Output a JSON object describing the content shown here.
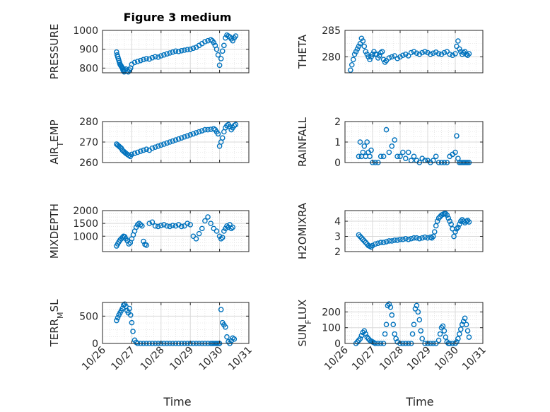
{
  "figure": {
    "title": "Figure 3 medium",
    "xlabel": "Time",
    "marker_color": "#0072BD",
    "axis_color": "#262626",
    "grid_color": "#d9d9d9",
    "x_tick_labels": [
      "10/26",
      "10/27",
      "10/28",
      "10/29",
      "10/30",
      "10/31"
    ]
  },
  "chart_data": [
    {
      "type": "scatter",
      "id": "pressure",
      "title": "Figure 3 medium",
      "ylabel": "PRESSURE",
      "xlim": [
        0,
        5
      ],
      "ylim": [
        775,
        1000
      ],
      "yticks": [
        800,
        900,
        1000
      ],
      "grid": true,
      "xlabel": "",
      "series": [
        {
          "x": [
            0.48,
            0.5,
            0.52,
            0.54,
            0.56,
            0.58,
            0.6,
            0.62,
            0.64,
            0.66,
            0.68,
            0.7,
            0.72,
            0.74,
            0.76,
            0.8,
            0.84,
            0.88,
            0.92,
            0.96,
            1.0,
            1.1,
            1.2,
            1.3,
            1.4,
            1.5,
            1.6,
            1.7,
            1.8,
            1.9,
            2.0,
            2.1,
            2.2,
            2.3,
            2.4,
            2.5,
            2.6,
            2.7,
            2.8,
            2.9,
            3.0,
            3.1,
            3.2,
            3.3,
            3.4,
            3.5,
            3.6,
            3.7,
            3.75,
            3.8,
            3.85,
            3.9,
            3.95,
            4.0,
            4.05,
            4.1,
            4.15,
            4.2,
            4.25,
            4.3,
            4.35,
            4.4,
            4.45,
            4.5,
            4.55
          ],
          "y": [
            885,
            870,
            860,
            850,
            840,
            830,
            820,
            815,
            810,
            805,
            800,
            790,
            785,
            780,
            790,
            795,
            785,
            780,
            790,
            800,
            820,
            830,
            835,
            840,
            845,
            850,
            848,
            855,
            860,
            858,
            865,
            870,
            875,
            880,
            885,
            890,
            888,
            892,
            895,
            898,
            900,
            905,
            910,
            920,
            930,
            940,
            945,
            950,
            945,
            935,
            920,
            900,
            870,
            815,
            850,
            890,
            920,
            960,
            975,
            970,
            965,
            955,
            945,
            960,
            970
          ]
        }
      ]
    },
    {
      "type": "scatter",
      "id": "theta",
      "ylabel": "THETA",
      "xlim": [
        0,
        5
      ],
      "ylim": [
        277,
        285
      ],
      "yticks": [
        280,
        285
      ],
      "grid": true,
      "xlabel": "",
      "title": "",
      "series": [
        {
          "x": [
            0.2,
            0.25,
            0.3,
            0.35,
            0.4,
            0.45,
            0.5,
            0.55,
            0.6,
            0.65,
            0.7,
            0.75,
            0.8,
            0.85,
            0.9,
            0.95,
            1.0,
            1.05,
            1.1,
            1.15,
            1.2,
            1.25,
            1.3,
            1.35,
            1.4,
            1.45,
            1.5,
            1.6,
            1.7,
            1.8,
            1.9,
            2.0,
            2.1,
            2.2,
            2.3,
            2.4,
            2.5,
            2.6,
            2.7,
            2.8,
            2.9,
            3.0,
            3.1,
            3.2,
            3.3,
            3.4,
            3.5,
            3.6,
            3.7,
            3.8,
            3.9,
            4.0,
            4.05,
            4.1,
            4.15,
            4.2,
            4.25,
            4.3,
            4.35,
            4.4,
            4.45,
            4.5
          ],
          "y": [
            277.5,
            278.5,
            279.5,
            280.5,
            281,
            281.5,
            282,
            282.5,
            283.5,
            283,
            282,
            281,
            280.5,
            280,
            279.5,
            280,
            280.5,
            281,
            280.5,
            280.5,
            279.8,
            280.2,
            280.8,
            281,
            279.5,
            279,
            279.3,
            279.8,
            280,
            280.2,
            279.7,
            280,
            280.3,
            280.5,
            280.2,
            280.8,
            281,
            280.7,
            280.5,
            280.8,
            281,
            280.8,
            280.5,
            280.7,
            280.9,
            280.6,
            280.5,
            280.8,
            281,
            280.5,
            280.3,
            280.6,
            282,
            283,
            281.5,
            281,
            280.5,
            280.8,
            281,
            280.5,
            280.3,
            280.6
          ]
        }
      ]
    },
    {
      "type": "scatter",
      "id": "air_temp",
      "ylabel": "AIR_TEMP",
      "xlim": [
        0,
        5
      ],
      "ylim": [
        260,
        280
      ],
      "yticks": [
        260,
        270,
        280
      ],
      "grid": true,
      "xlabel": "",
      "title": "",
      "series": [
        {
          "x": [
            0.48,
            0.52,
            0.56,
            0.6,
            0.64,
            0.68,
            0.72,
            0.76,
            0.8,
            0.85,
            0.9,
            0.95,
            1.0,
            1.1,
            1.2,
            1.3,
            1.4,
            1.5,
            1.6,
            1.7,
            1.8,
            1.9,
            2.0,
            2.1,
            2.2,
            2.3,
            2.4,
            2.5,
            2.6,
            2.7,
            2.8,
            2.9,
            3.0,
            3.1,
            3.2,
            3.3,
            3.4,
            3.5,
            3.6,
            3.7,
            3.8,
            3.85,
            3.9,
            3.95,
            4.0,
            4.05,
            4.1,
            4.15,
            4.2,
            4.25,
            4.3,
            4.35,
            4.4,
            4.45,
            4.5,
            4.55
          ],
          "y": [
            269,
            268.5,
            268,
            267.5,
            267,
            266,
            265.5,
            265,
            264.5,
            264,
            263.5,
            263,
            264,
            264.5,
            265,
            265.5,
            266,
            266.5,
            266,
            267,
            267.5,
            268,
            268.5,
            269,
            269.5,
            270,
            270.5,
            271,
            271.5,
            272,
            272.5,
            273,
            273.5,
            274,
            274.5,
            275,
            275.5,
            276,
            276,
            276.2,
            276.5,
            276,
            275,
            274,
            268,
            270,
            272,
            275,
            277,
            278,
            278.5,
            277.5,
            276,
            277,
            278,
            278.5
          ]
        }
      ]
    },
    {
      "type": "scatter",
      "id": "rainfall",
      "ylabel": "RAINFALL",
      "xlim": [
        0,
        5
      ],
      "ylim": [
        0,
        2
      ],
      "yticks": [
        0,
        1,
        2
      ],
      "grid": true,
      "xlabel": "",
      "title": "",
      "series": [
        {
          "x": [
            0.5,
            0.55,
            0.6,
            0.65,
            0.7,
            0.75,
            0.8,
            0.85,
            0.9,
            0.95,
            1.0,
            1.1,
            1.2,
            1.3,
            1.4,
            1.5,
            1.6,
            1.7,
            1.8,
            1.9,
            2.0,
            2.1,
            2.2,
            2.3,
            2.4,
            2.5,
            2.6,
            2.7,
            2.8,
            2.9,
            3.0,
            3.1,
            3.2,
            3.3,
            3.4,
            3.5,
            3.6,
            3.7,
            3.8,
            3.9,
            4.0,
            4.05,
            4.1,
            4.15,
            4.2,
            4.25,
            4.3,
            4.35,
            4.4,
            4.45,
            4.5
          ],
          "y": [
            0.3,
            1.0,
            0.3,
            0.5,
            0.8,
            0.3,
            1.0,
            0.5,
            0.3,
            0.6,
            0,
            0,
            0,
            0.3,
            0.3,
            1.6,
            0.5,
            0.8,
            1.1,
            0.3,
            0.3,
            0.5,
            0.2,
            0.5,
            0.1,
            0.3,
            0.1,
            0,
            0.2,
            0.1,
            0.1,
            0,
            0.1,
            0.3,
            0,
            0,
            0,
            0,
            0.3,
            0.4,
            0.5,
            1.3,
            0.2,
            0,
            0,
            0,
            0,
            0,
            0,
            0,
            0
          ]
        }
      ]
    },
    {
      "type": "scatter",
      "id": "mixdepth",
      "ylabel": "MIXDEPTH",
      "xlim": [
        0,
        5
      ],
      "ylim": [
        400,
        2000
      ],
      "yticks": [
        1000,
        1500,
        2000
      ],
      "grid": true,
      "xlabel": "",
      "title": "",
      "series": [
        {
          "x": [
            0.48,
            0.52,
            0.56,
            0.6,
            0.64,
            0.68,
            0.72,
            0.76,
            0.8,
            0.85,
            0.9,
            0.95,
            1.0,
            1.05,
            1.1,
            1.15,
            1.2,
            1.25,
            1.3,
            1.35,
            1.4,
            1.45,
            1.5,
            1.6,
            1.7,
            1.8,
            1.9,
            2.0,
            2.1,
            2.2,
            2.3,
            2.4,
            2.5,
            2.6,
            2.7,
            2.8,
            2.9,
            3.0,
            3.1,
            3.2,
            3.3,
            3.4,
            3.5,
            3.6,
            3.7,
            3.8,
            3.9,
            4.0,
            4.05,
            4.1,
            4.15,
            4.2,
            4.25,
            4.3,
            4.35,
            4.4,
            4.45
          ],
          "y": [
            620,
            700,
            780,
            850,
            900,
            950,
            1000,
            980,
            900,
            820,
            700,
            750,
            900,
            1050,
            1200,
            1350,
            1450,
            1500,
            1450,
            1400,
            800,
            680,
            650,
            1500,
            1550,
            1400,
            1380,
            1420,
            1450,
            1400,
            1380,
            1420,
            1400,
            1450,
            1380,
            1400,
            1500,
            1450,
            1000,
            900,
            1100,
            1300,
            1600,
            1750,
            1500,
            1300,
            1200,
            1000,
            900,
            950,
            1200,
            1300,
            1400,
            1350,
            1450,
            1300,
            1350
          ]
        }
      ]
    },
    {
      "type": "scatter",
      "id": "h2omixra",
      "ylabel": "H2OMIXRA",
      "xlim": [
        0,
        5
      ],
      "ylim": [
        2,
        4.7
      ],
      "yticks": [
        2,
        3,
        4
      ],
      "grid": true,
      "xlabel": "",
      "title": "",
      "series": [
        {
          "x": [
            0.5,
            0.55,
            0.6,
            0.65,
            0.7,
            0.75,
            0.8,
            0.85,
            0.9,
            0.95,
            1.0,
            1.1,
            1.2,
            1.3,
            1.4,
            1.5,
            1.6,
            1.7,
            1.8,
            1.9,
            2.0,
            2.1,
            2.2,
            2.3,
            2.4,
            2.5,
            2.6,
            2.7,
            2.8,
            2.9,
            3.0,
            3.1,
            3.15,
            3.2,
            3.25,
            3.3,
            3.35,
            3.4,
            3.45,
            3.5,
            3.55,
            3.6,
            3.65,
            3.7,
            3.75,
            3.8,
            3.85,
            3.9,
            3.95,
            4.0,
            4.05,
            4.1,
            4.15,
            4.2,
            4.25,
            4.3,
            4.35,
            4.4,
            4.45,
            4.5
          ],
          "y": [
            3.1,
            3.0,
            2.9,
            2.8,
            2.7,
            2.6,
            2.5,
            2.4,
            2.35,
            2.3,
            2.4,
            2.5,
            2.55,
            2.6,
            2.6,
            2.65,
            2.7,
            2.7,
            2.75,
            2.75,
            2.8,
            2.8,
            2.85,
            2.8,
            2.85,
            2.9,
            2.9,
            2.85,
            2.9,
            2.95,
            2.9,
            2.95,
            2.9,
            3.0,
            3.3,
            3.7,
            4.0,
            4.2,
            4.3,
            4.4,
            4.45,
            4.5,
            4.5,
            4.4,
            4.2,
            4.0,
            3.8,
            3.5,
            3.0,
            3.3,
            3.5,
            3.6,
            3.8,
            4.0,
            4.1,
            4.0,
            3.9,
            4.0,
            4.05,
            3.95
          ]
        }
      ]
    },
    {
      "type": "scatter",
      "id": "terr_msl",
      "ylabel": "TERR_MSL",
      "xlim": [
        0,
        5
      ],
      "ylim": [
        0,
        750
      ],
      "yticks": [
        0,
        500
      ],
      "grid": true,
      "xlabel": "",
      "title": "",
      "series": [
        {
          "x": [
            0.48,
            0.52,
            0.56,
            0.6,
            0.64,
            0.68,
            0.72,
            0.76,
            0.8,
            0.84,
            0.88,
            0.92,
            0.96,
            1.0,
            1.04,
            1.1,
            1.15,
            1.2,
            1.3,
            1.4,
            1.5,
            1.6,
            1.7,
            1.8,
            1.9,
            2.0,
            2.1,
            2.2,
            2.3,
            2.4,
            2.5,
            2.6,
            2.7,
            2.8,
            2.9,
            3.0,
            3.1,
            3.2,
            3.3,
            3.4,
            3.5,
            3.6,
            3.7,
            3.75,
            3.8,
            3.85,
            3.9,
            3.95,
            4.0,
            4.05,
            4.1,
            4.15,
            4.2,
            4.25,
            4.3,
            4.35,
            4.4,
            4.45,
            4.5
          ],
          "y": [
            420,
            470,
            520,
            560,
            600,
            640,
            700,
            720,
            680,
            600,
            560,
            640,
            520,
            380,
            220,
            60,
            20,
            0,
            0,
            0,
            0,
            0,
            0,
            0,
            0,
            0,
            0,
            0,
            0,
            0,
            0,
            0,
            0,
            0,
            0,
            0,
            0,
            0,
            0,
            0,
            0,
            0,
            0,
            0,
            0,
            0,
            0,
            0,
            0,
            620,
            380,
            340,
            300,
            120,
            30,
            0,
            50,
            100,
            80
          ]
        }
      ]
    },
    {
      "type": "scatter",
      "id": "sun_flux",
      "ylabel": "SUN_FLUX",
      "xlim": [
        0,
        5
      ],
      "ylim": [
        0,
        260
      ],
      "yticks": [
        0,
        100,
        200
      ],
      "grid": true,
      "xlabel": "",
      "title": "",
      "series": [
        {
          "x": [
            0.4,
            0.45,
            0.5,
            0.55,
            0.6,
            0.65,
            0.7,
            0.75,
            0.8,
            0.85,
            0.9,
            0.95,
            1.0,
            1.05,
            1.1,
            1.2,
            1.3,
            1.4,
            1.45,
            1.5,
            1.55,
            1.6,
            1.65,
            1.7,
            1.75,
            1.8,
            1.85,
            1.9,
            2.0,
            2.1,
            2.2,
            2.3,
            2.4,
            2.45,
            2.5,
            2.55,
            2.6,
            2.65,
            2.7,
            2.75,
            2.8,
            2.9,
            3.0,
            3.1,
            3.2,
            3.3,
            3.4,
            3.45,
            3.5,
            3.55,
            3.6,
            3.65,
            3.7,
            3.75,
            3.8,
            3.9,
            4.0,
            4.05,
            4.1,
            4.15,
            4.2,
            4.25,
            4.3,
            4.35,
            4.4,
            4.45,
            4.5
          ],
          "y": [
            0,
            10,
            20,
            30,
            50,
            70,
            80,
            60,
            40,
            30,
            20,
            15,
            10,
            5,
            0,
            0,
            0,
            0,
            60,
            120,
            240,
            250,
            230,
            180,
            120,
            60,
            30,
            10,
            0,
            0,
            0,
            0,
            0,
            60,
            120,
            220,
            240,
            200,
            150,
            80,
            30,
            0,
            0,
            0,
            0,
            0,
            20,
            60,
            100,
            110,
            80,
            40,
            10,
            0,
            0,
            0,
            0,
            10,
            30,
            60,
            90,
            120,
            140,
            160,
            120,
            80,
            40
          ]
        }
      ]
    }
  ]
}
